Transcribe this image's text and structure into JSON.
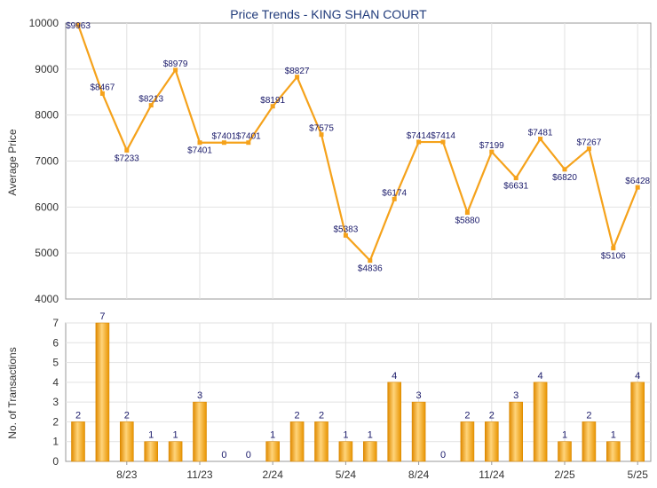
{
  "chart_data": [
    {
      "type": "line",
      "title": "Price Trends - KING SHAN COURT",
      "ylabel": "Average Price",
      "ylim": [
        4000,
        10000
      ],
      "yticks": [
        "4000",
        "5000",
        "6000",
        "7000",
        "8000",
        "9000",
        "10000"
      ],
      "xticks": [
        "8/23",
        "11/23",
        "2/24",
        "5/24",
        "8/24",
        "11/24",
        "2/25",
        "5/25"
      ],
      "series": [
        {
          "values": [
            9963,
            8467,
            7233,
            8213,
            8979,
            7401,
            7401,
            7401,
            8191,
            8827,
            7575,
            5383,
            4836,
            6174,
            7414,
            7414,
            5880,
            7199,
            6631,
            7481,
            6820,
            7267,
            5106,
            6428
          ],
          "labels": [
            "$9963",
            "$8467",
            "$7233",
            "$8213",
            "$8979",
            "$7401",
            "$7401",
            "$7401",
            "$8191",
            "$8827",
            "$7575",
            "$5383",
            "$4836",
            "$6174",
            "$7414",
            "$7414",
            "$5880",
            "$7199",
            "$6631",
            "$7481",
            "$6820",
            "$7267",
            "$5106",
            "$6428"
          ]
        }
      ],
      "color": "#f5a21b",
      "grid": true
    },
    {
      "type": "bar",
      "ylabel": "No. of Transactions",
      "ylim": [
        0,
        7
      ],
      "yticks": [
        "0",
        "1",
        "2",
        "3",
        "4",
        "5",
        "6",
        "7"
      ],
      "xticks": [
        "8/23",
        "11/23",
        "2/24",
        "5/24",
        "8/24",
        "11/24",
        "2/25",
        "5/25"
      ],
      "values": [
        2,
        7,
        2,
        1,
        1,
        3,
        0,
        0,
        1,
        2,
        2,
        1,
        1,
        4,
        3,
        0,
        2,
        2,
        3,
        4,
        1,
        2,
        1,
        4
      ],
      "color": "#f5a21b",
      "grid": true
    }
  ]
}
